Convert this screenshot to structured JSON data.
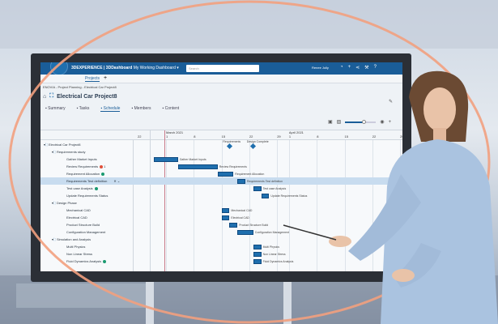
{
  "colors": {
    "accent": "#1a5d98",
    "bar": "#1f6fae",
    "ring": "#f2a07e",
    "status_green": "#1a9a70",
    "status_red": "#e0503a"
  },
  "app": {
    "brand": "3DEXPERIENCE | 3DDashboard",
    "dashboard": "My Working Dashboard",
    "search_placeholder": "Search",
    "user": "Renee Jolly"
  },
  "tab_bar": {
    "tab": "Projects",
    "add": "+"
  },
  "breadcrumb": "ENOVIA - Project Planning - Electrical Car Project8",
  "title": "Electrical Car Project8",
  "tabs": [
    {
      "label": "Summary"
    },
    {
      "label": "Tasks"
    },
    {
      "label": "Schedule",
      "active": true
    },
    {
      "label": "Members"
    },
    {
      "label": "Content"
    }
  ],
  "zoom_level": 0.6,
  "icons": [
    "home-icon",
    "project-icon",
    "summary-icon",
    "tasks-icon",
    "calendar-icon",
    "members-icon",
    "content-icon",
    "filter-icon",
    "tag-icon",
    "notification-icon",
    "plus-icon",
    "share-icon",
    "help-icon",
    "eye-icon",
    "pencil-icon",
    "expand-icon"
  ],
  "timeline": {
    "months": [
      {
        "label": "March 2021",
        "date": "2021-03-01"
      },
      {
        "label": "April 2021",
        "date": "2021-04-01"
      }
    ],
    "first_col": "22",
    "ticks": [
      {
        "label": "1",
        "date": "2021-03-01"
      },
      {
        "label": "8",
        "date": "2021-03-08"
      },
      {
        "label": "15",
        "date": "2021-03-15"
      },
      {
        "label": "22",
        "date": "2021-03-22"
      },
      {
        "label": "29",
        "date": "2021-03-29"
      },
      {
        "label": "1",
        "date": "2021-04-01"
      },
      {
        "label": "8",
        "date": "2021-04-08"
      },
      {
        "label": "15",
        "date": "2021-04-15"
      },
      {
        "label": "22",
        "date": "2021-04-22"
      },
      {
        "label": "29",
        "date": "2021-04-29"
      }
    ]
  },
  "milestones": [
    {
      "label": "Requirements",
      "date": "2021-03-17"
    },
    {
      "label": "Design Complete",
      "date": "2021-03-23"
    }
  ],
  "rows": [
    {
      "name": "Electrical Car Project8",
      "level": 0,
      "group": true
    },
    {
      "name": "Requirements study",
      "level": 1,
      "group": true
    },
    {
      "name": "Gather Market Inputs",
      "level": 2,
      "start": "2021-02-26",
      "end": "2021-03-04"
    },
    {
      "name": "Review Requirements",
      "level": 2,
      "start": "2021-03-04",
      "end": "2021-03-14",
      "status": "red",
      "badge": "1"
    },
    {
      "name": "Requirement Allocation",
      "level": 2,
      "start": "2021-03-14",
      "end": "2021-03-18",
      "status": "green"
    },
    {
      "name": "Requirements Test definition",
      "level": 2,
      "start": "2021-03-19",
      "end": "2021-03-21",
      "selected": true
    },
    {
      "name": "Test case Analysis",
      "level": 2,
      "start": "2021-03-23",
      "end": "2021-03-25",
      "status": "green"
    },
    {
      "name": "Update Requirements Status",
      "level": 2,
      "start": "2021-03-25",
      "end": "2021-03-27"
    },
    {
      "name": "Design Phase",
      "level": 1,
      "group": true
    },
    {
      "name": "Mechanical CAD",
      "level": 2,
      "start": "2021-03-15",
      "end": "2021-03-17"
    },
    {
      "name": "Electrical CAD",
      "level": 2,
      "start": "2021-03-15",
      "end": "2021-03-17"
    },
    {
      "name": "Product Structure Build",
      "level": 2,
      "start": "2021-03-17",
      "end": "2021-03-19"
    },
    {
      "name": "Configuration Management",
      "level": 2,
      "start": "2021-03-19",
      "end": "2021-03-23"
    },
    {
      "name": "Simulation and Analysis",
      "level": 1,
      "group": true
    },
    {
      "name": "Multi Physics",
      "level": 2,
      "start": "2021-03-23",
      "end": "2021-03-25"
    },
    {
      "name": "Non Linear Stress",
      "level": 2,
      "start": "2021-03-23",
      "end": "2021-03-25"
    },
    {
      "name": "Fluid Dynamics Analysis",
      "level": 2,
      "start": "2021-03-23",
      "end": "2021-03-25",
      "status": "green"
    }
  ]
}
